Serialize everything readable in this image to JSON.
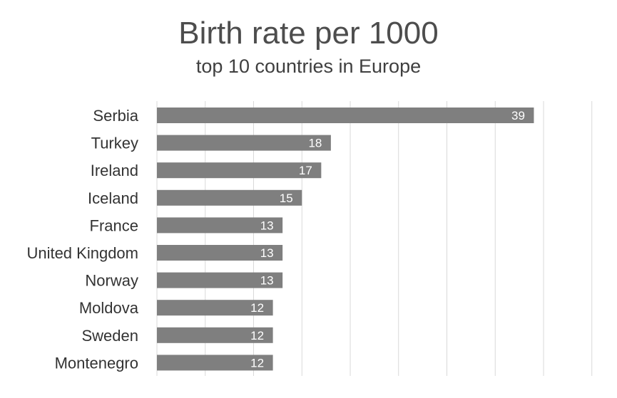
{
  "chart_data": {
    "type": "bar",
    "orientation": "horizontal",
    "title": "Birth rate per 1000",
    "subtitle": "top 10 countries in Europe",
    "categories": [
      "Serbia",
      "Turkey",
      "Ireland",
      "Iceland",
      "France",
      "United Kingdom",
      "Norway",
      "Moldova",
      "Sweden",
      "Montenegro"
    ],
    "values": [
      39,
      18,
      17,
      15,
      13,
      13,
      13,
      12,
      12,
      12
    ],
    "xlim": [
      0,
      45
    ],
    "grid": true,
    "data_labels": true,
    "bar_color": "#7f7f7f"
  }
}
